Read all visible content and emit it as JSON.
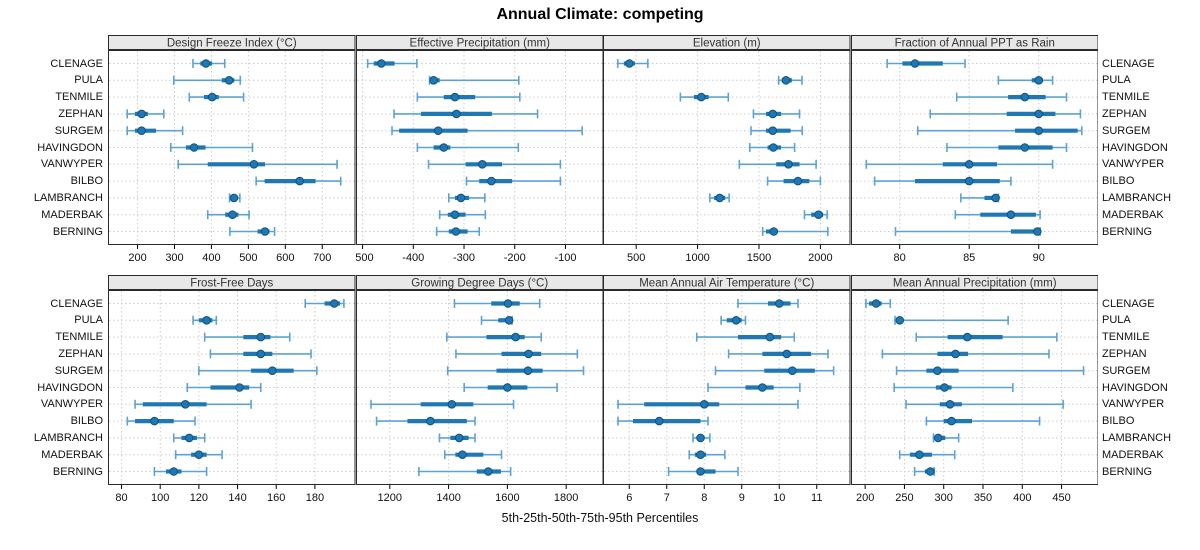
{
  "title": "Annual Climate: competing",
  "xlabel": "5th-25th-50th-75th-95th Percentiles",
  "colors": {
    "median_dot": "#1f77b4",
    "median_dot_edge": "#10527f",
    "box": "#1f77b4",
    "whisker": "#5da2d3",
    "header_bg": "#e8e8e8",
    "panel_border": "#2b2b2b",
    "grid": "#cccccc",
    "text": "#111111"
  },
  "chart_data": {
    "type": "percentile-dot-whisker",
    "title": "Annual Climate: competing",
    "xlabel": "5th-25th-50th-75th-95th Percentiles",
    "percentiles": [
      5,
      25,
      50,
      75,
      95
    ],
    "legend_position": "none",
    "grid": "dotted",
    "categories": [
      "CLENAGE",
      "PULA",
      "TENMILE",
      "ZEPHAN",
      "SURGEM",
      "HAVINGDON",
      "VANWYPER",
      "BILBO",
      "LAMBRANCH",
      "MADERBAK",
      "BERNING"
    ],
    "panels": [
      {
        "title": "Design Freeze Index (°C)",
        "ticks": [
          200,
          300,
          400,
          500,
          600,
          700
        ],
        "xlim": [
          120,
          790
        ],
        "values": [
          [
            350,
            370,
            385,
            402,
            436
          ],
          [
            298,
            428,
            448,
            462,
            478
          ],
          [
            340,
            380,
            402,
            420,
            487
          ],
          [
            172,
            193,
            211,
            228,
            271
          ],
          [
            172,
            193,
            211,
            250,
            322
          ],
          [
            290,
            331,
            353,
            384,
            511
          ],
          [
            310,
            390,
            515,
            545,
            740
          ],
          [
            521,
            544,
            639,
            682,
            750
          ],
          [
            449,
            456,
            461,
            468,
            477
          ],
          [
            390,
            437,
            457,
            473,
            502
          ],
          [
            450,
            525,
            545,
            557,
            571
          ]
        ]
      },
      {
        "title": "Effective Precipitation (mm)",
        "ticks": [
          -500,
          -400,
          -300,
          -200,
          -100
        ],
        "xlim": [
          -513,
          -25
        ],
        "values": [
          [
            -490,
            -478,
            -463,
            -437,
            -393
          ],
          [
            -368,
            -364,
            -360,
            -348,
            -192
          ],
          [
            -392,
            -340,
            -318,
            -278,
            -190
          ],
          [
            -438,
            -385,
            -315,
            -245,
            -155
          ],
          [
            -442,
            -428,
            -351,
            -293,
            -67
          ],
          [
            -392,
            -360,
            -340,
            -327,
            -193
          ],
          [
            -370,
            -297,
            -264,
            -225,
            -110
          ],
          [
            -295,
            -270,
            -246,
            -205,
            -110
          ],
          [
            -330,
            -318,
            -306,
            -290,
            -259
          ],
          [
            -348,
            -332,
            -318,
            -297,
            -258
          ],
          [
            -354,
            -330,
            -316,
            -293,
            -270
          ]
        ]
      },
      {
        "title": "Elevation (m)",
        "ticks": [
          500,
          1000,
          1500,
          2000
        ],
        "xlim": [
          230,
          2245
        ],
        "values": [
          [
            350,
            400,
            445,
            490,
            595
          ],
          [
            1660,
            1685,
            1720,
            1768,
            1850
          ],
          [
            860,
            970,
            1030,
            1090,
            1250
          ],
          [
            1455,
            1557,
            1612,
            1680,
            1830
          ],
          [
            1435,
            1557,
            1612,
            1757,
            1852
          ],
          [
            1425,
            1570,
            1617,
            1680,
            1790
          ],
          [
            1340,
            1640,
            1740,
            1830,
            1965
          ],
          [
            1570,
            1700,
            1817,
            1910,
            2000
          ],
          [
            1100,
            1135,
            1180,
            1225,
            1257
          ],
          [
            1870,
            1925,
            1985,
            2022,
            2055
          ],
          [
            1530,
            1557,
            1620,
            1653,
            2060
          ]
        ]
      },
      {
        "title": "Fraction of Annual PPT as Rain",
        "ticks": [
          80,
          85,
          90
        ],
        "xlim": [
          76.5,
          94.3
        ],
        "values": [
          [
            79.1,
            80.2,
            81.1,
            83.1,
            84.7
          ],
          [
            87.1,
            89.5,
            90.0,
            90.3,
            91.0
          ],
          [
            84.1,
            87.8,
            89.0,
            90.5,
            92.0
          ],
          [
            82.2,
            87.7,
            90.0,
            91.2,
            93.0
          ],
          [
            81.3,
            88.3,
            90.0,
            92.8,
            93.1
          ],
          [
            83.4,
            87.1,
            89.0,
            91.0,
            92.0
          ],
          [
            77.6,
            83.1,
            85.0,
            87.0,
            91.0
          ],
          [
            78.2,
            81.1,
            85.0,
            87.2,
            88.0
          ],
          [
            84.4,
            86.1,
            86.9,
            87.0,
            87.1
          ],
          [
            84.0,
            85.8,
            88.0,
            89.8,
            90.1
          ],
          [
            79.7,
            88.0,
            89.9,
            90.0,
            90.1
          ]
        ]
      },
      {
        "title": "Frost-Free Days",
        "ticks": [
          80,
          100,
          120,
          140,
          160,
          180
        ],
        "xlim": [
          73,
          201
        ],
        "values": [
          [
            175,
            185,
            190,
            193,
            195
          ],
          [
            117,
            120,
            124,
            127,
            129
          ],
          [
            123,
            143,
            152,
            157,
            167
          ],
          [
            126,
            143,
            152,
            158,
            178
          ],
          [
            120,
            147,
            158,
            169,
            181
          ],
          [
            114,
            126,
            141,
            146,
            152
          ],
          [
            87,
            91,
            113,
            124,
            147
          ],
          [
            83,
            87,
            97,
            107,
            118
          ],
          [
            107,
            111,
            115,
            119,
            123
          ],
          [
            108,
            116,
            120,
            124,
            132
          ],
          [
            97,
            103,
            107,
            111,
            124
          ]
        ]
      },
      {
        "title": "Growing Degree Days (°C)",
        "ticks": [
          1200,
          1400,
          1600,
          1800
        ],
        "xlim": [
          1085,
          1927
        ],
        "values": [
          [
            1420,
            1545,
            1602,
            1642,
            1710
          ],
          [
            1512,
            1569,
            1606,
            1612,
            1616
          ],
          [
            1394,
            1529,
            1628,
            1659,
            1715
          ],
          [
            1425,
            1580,
            1672,
            1715,
            1838
          ],
          [
            1397,
            1563,
            1670,
            1720,
            1859
          ],
          [
            1453,
            1533,
            1600,
            1668,
            1769
          ],
          [
            1136,
            1305,
            1411,
            1484,
            1621
          ],
          [
            1155,
            1260,
            1338,
            1462,
            1490
          ],
          [
            1369,
            1406,
            1436,
            1468,
            1490
          ],
          [
            1387,
            1423,
            1447,
            1518,
            1580
          ],
          [
            1299,
            1496,
            1535,
            1578,
            1611
          ]
        ]
      },
      {
        "title": "Mean Annual Air Temperature (°C)",
        "ticks": [
          6,
          7,
          8,
          9,
          10,
          11
        ],
        "xlim": [
          5.3,
          11.9
        ],
        "values": [
          [
            8.9,
            9.7,
            10.0,
            10.3,
            10.5
          ],
          [
            8.45,
            8.6,
            8.85,
            9.0,
            9.1
          ],
          [
            7.8,
            8.9,
            9.75,
            10.05,
            10.4
          ],
          [
            8.65,
            9.55,
            10.2,
            10.85,
            11.3
          ],
          [
            8.3,
            9.6,
            10.35,
            10.95,
            11.45
          ],
          [
            8.1,
            9.1,
            9.55,
            9.85,
            10.55
          ],
          [
            5.7,
            6.4,
            8.0,
            8.4,
            10.5
          ],
          [
            5.7,
            6.1,
            6.8,
            7.9,
            8.1
          ],
          [
            7.7,
            7.8,
            7.9,
            8.0,
            8.15
          ],
          [
            7.6,
            7.75,
            7.9,
            8.05,
            8.55
          ],
          [
            7.05,
            7.8,
            7.9,
            8.3,
            8.9
          ]
        ]
      },
      {
        "title": "Mean Annual Precipitation (mm)",
        "ticks": [
          200,
          250,
          300,
          350,
          400,
          450
        ],
        "xlim": [
          182,
          497
        ],
        "values": [
          [
            201,
            205,
            214,
            221,
            232
          ],
          [
            238,
            240,
            244,
            249,
            382
          ],
          [
            265,
            305,
            330,
            375,
            444
          ],
          [
            222,
            292,
            315,
            331,
            434
          ],
          [
            240,
            278,
            292,
            319,
            478
          ],
          [
            237,
            290,
            301,
            310,
            388
          ],
          [
            252,
            295,
            308,
            323,
            452
          ],
          [
            278,
            300,
            310,
            336,
            422
          ],
          [
            287,
            289,
            293,
            302,
            319
          ],
          [
            244,
            257,
            269,
            285,
            314
          ],
          [
            263,
            276,
            283,
            287,
            288
          ]
        ]
      }
    ]
  }
}
